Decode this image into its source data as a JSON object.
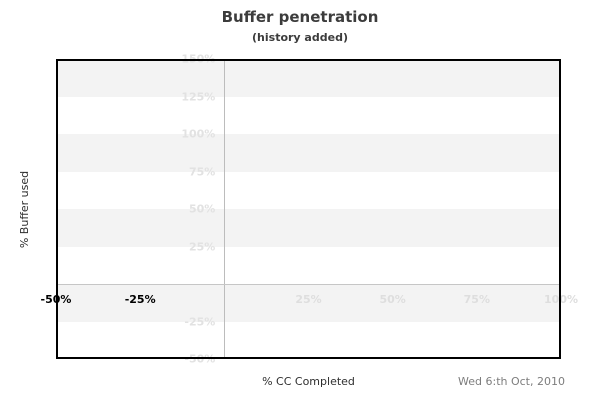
{
  "chart_data": {
    "type": "line",
    "title": "Buffer penetration",
    "subtitle": "(history added)",
    "xlabel": "% CC Completed",
    "ylabel": "% Buffer used",
    "date": "Wed 6:th Oct, 2010",
    "x_axis": {
      "range": [
        -50,
        100
      ],
      "ticks": [
        {
          "value": -50,
          "label": "-50%",
          "emphasis": true
        },
        {
          "value": -25,
          "label": "-25%",
          "emphasis": true
        },
        {
          "value": 25,
          "label": "25%",
          "emphasis": false
        },
        {
          "value": 50,
          "label": "50%",
          "emphasis": false
        },
        {
          "value": 75,
          "label": "75%",
          "emphasis": false
        },
        {
          "value": 100,
          "label": "100%",
          "emphasis": false
        }
      ]
    },
    "y_axis": {
      "range": [
        -50,
        150
      ],
      "ticks": [
        {
          "value": 150,
          "label": "150%"
        },
        {
          "value": 125,
          "label": "125%"
        },
        {
          "value": 100,
          "label": "100%"
        },
        {
          "value": 75,
          "label": "75%"
        },
        {
          "value": 50,
          "label": "50%"
        },
        {
          "value": 25,
          "label": "25%"
        },
        {
          "value": -25,
          "label": "-25%"
        },
        {
          "value": -50,
          "label": "-50%"
        }
      ]
    },
    "stripe_bands": [
      [
        150,
        125
      ],
      [
        100,
        75
      ],
      [
        50,
        25
      ],
      [
        0,
        -25
      ]
    ],
    "zero_lines": {
      "x": 0,
      "y": 0
    },
    "series": [],
    "legend": null,
    "grid": "alternating-horizontal-stripes",
    "colors": {
      "stripe": "#f3f3f3",
      "zero_line": "#c2c2c2",
      "faint_label": "#e2e2e2",
      "dark_label": "#000000",
      "border": "#000000",
      "title": "#3c3c3c",
      "axis_title": "#2e2e2e",
      "date": "#7d7d7d"
    }
  }
}
